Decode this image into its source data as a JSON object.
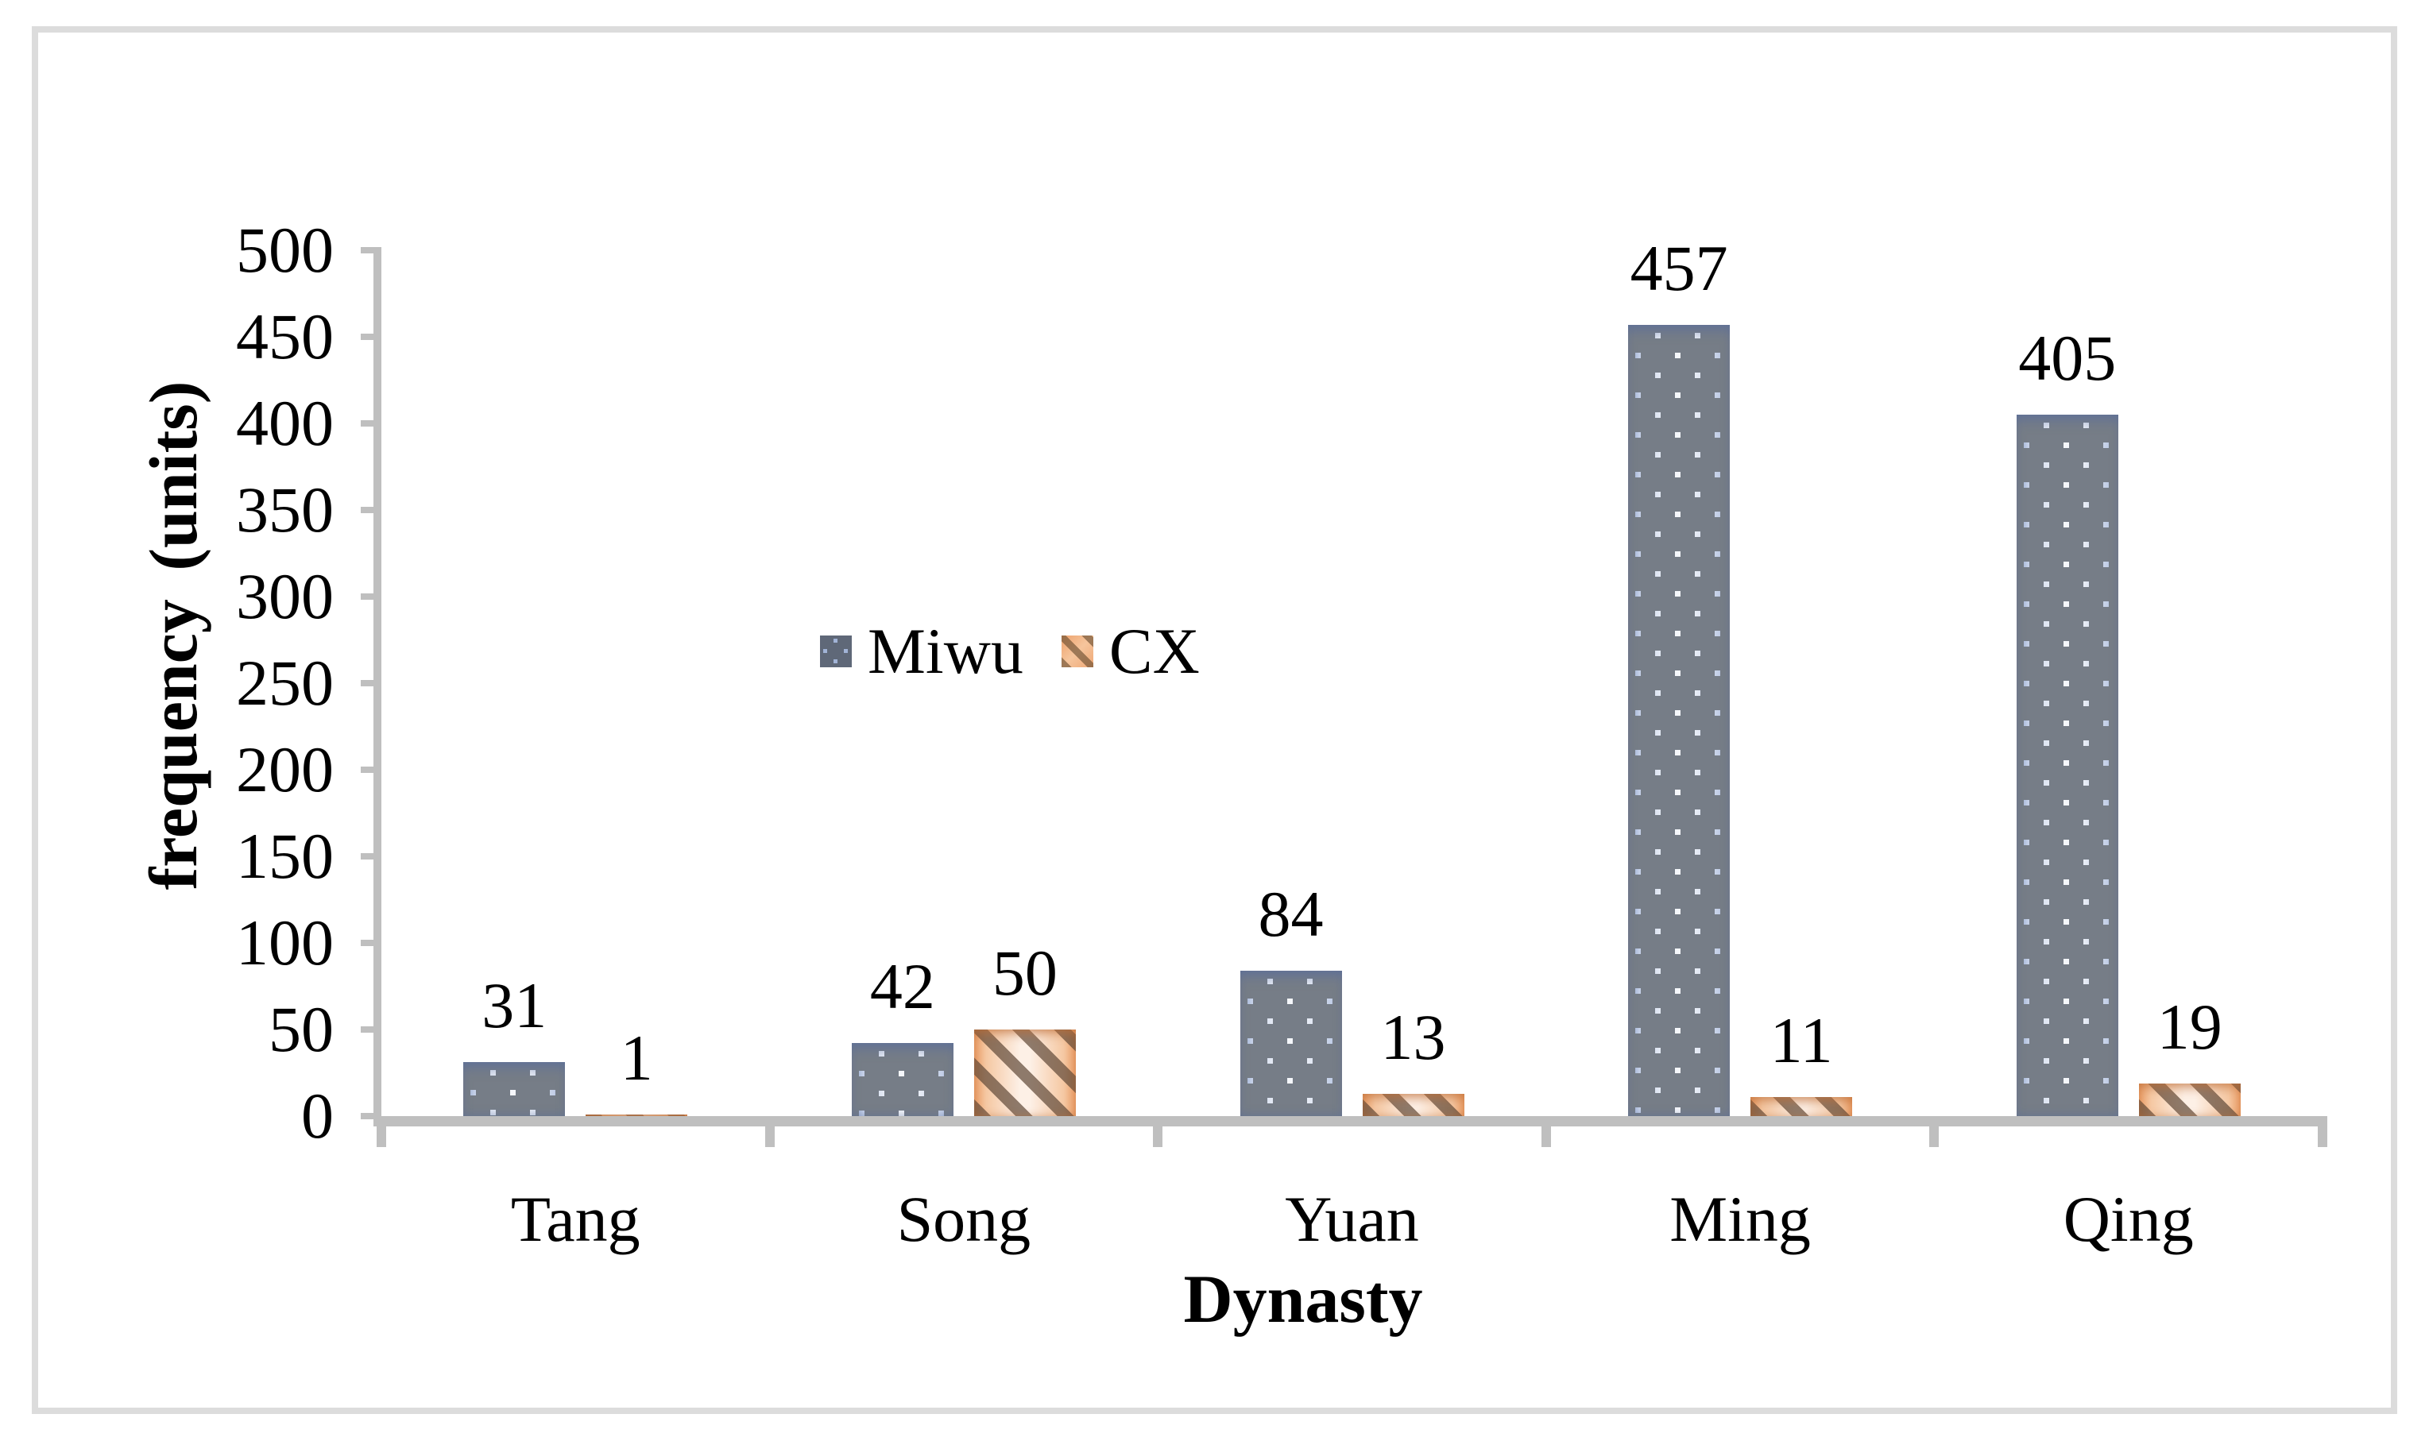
{
  "chart_data": {
    "type": "bar",
    "title": "",
    "categories": [
      "Tang",
      "Song",
      "Yuan",
      "Ming",
      "Qing"
    ],
    "series": [
      {
        "name": "Miwu",
        "values": [
          31,
          42,
          84,
          457,
          405
        ],
        "pattern": "blue dotted"
      },
      {
        "name": "CX",
        "values": [
          1,
          50,
          13,
          11,
          19
        ],
        "pattern": "orange diagonal-striped"
      }
    ],
    "xlabel": "Dynasty",
    "ylabel": "frequency (units)",
    "ylim": [
      0,
      500
    ],
    "ytick_step": 50,
    "yticks": [
      0,
      50,
      100,
      150,
      200,
      250,
      300,
      350,
      400,
      450,
      500
    ],
    "grid": false,
    "data_labels": true,
    "legend_position": "inside-plot, left of center above bars",
    "colors": {
      "miwu_fill_edge": "#90a3cd",
      "miwu_fill_center": "#f5f7fb",
      "miwu_dot": "#767d87",
      "cx_fill_edge": "#ea9d66",
      "cx_fill_center": "#fdf0e6",
      "cx_stripe": "#6e5844",
      "axis": "#bfbfbf",
      "frame": "#dcdcdc",
      "text": "#000000"
    }
  }
}
